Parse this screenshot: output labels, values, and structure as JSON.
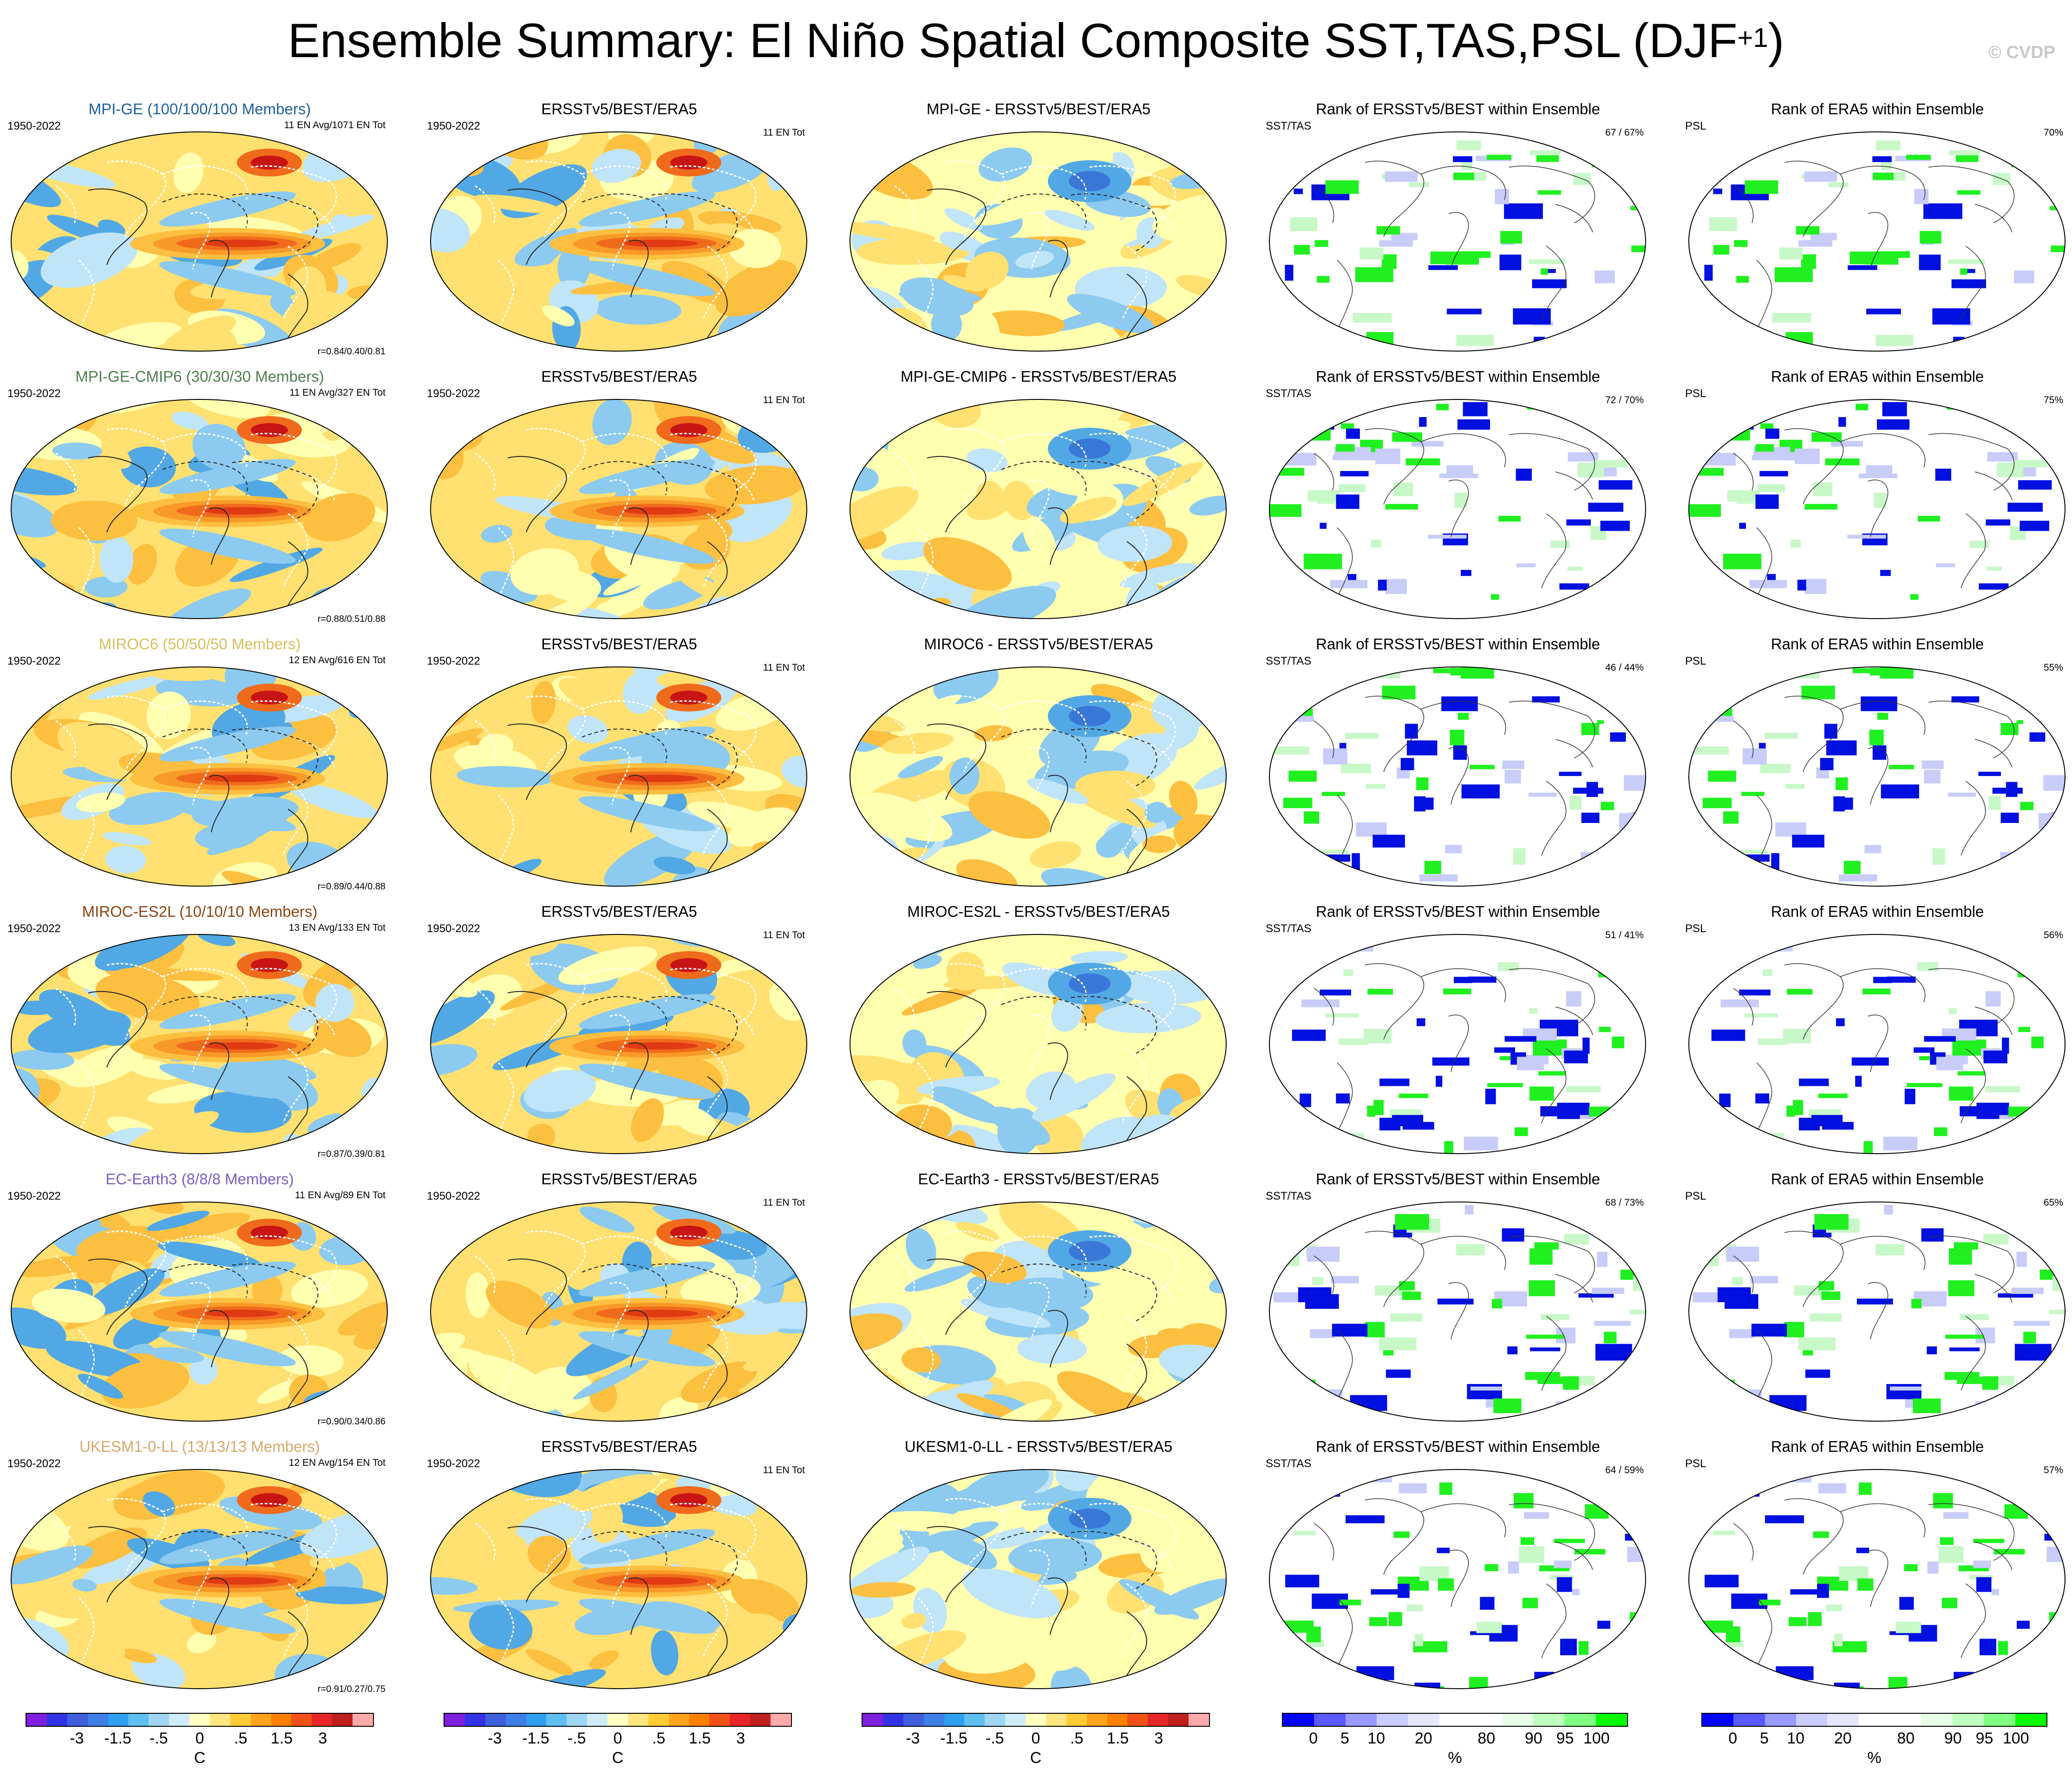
{
  "title": {
    "main": "Ensemble Summary: El Niño Spatial Composite SST,TAS,PSL (DJF",
    "sup": "+1",
    "close": ")"
  },
  "copyright": "© CVDP",
  "colors": {
    "warm": [
      "#ffffb0",
      "#ffe070",
      "#fdbf40",
      "#f89a28",
      "#f06a1c",
      "#e03a14",
      "#c81414"
    ],
    "cool": [
      "#c0e4f8",
      "#8ccaf0",
      "#52a8e4",
      "#3a78d8"
    ],
    "rank_blue": "#0010e0",
    "rank_green": "#20f020",
    "rank_lightblue": "#c8ccf8",
    "rank_lightgreen": "#c8f8c8"
  },
  "rows": [
    {
      "model": {
        "label": "MPI-GE (100/100/100 Members)",
        "color": "#1f5f9f",
        "years": "1950-2022",
        "info": "11 EN Avg/1071 EN Tot",
        "corr": "r=0.84/0.40/0.81"
      },
      "obs": {
        "label": "ERSSTv5/BEST/ERA5",
        "years": "1950-2022",
        "info": "11 EN Tot"
      },
      "diff": {
        "label": "MPI-GE - ERSSTv5/BEST/ERA5"
      },
      "rank_sst": {
        "label": "Rank of ERSSTv5/BEST within Ensemble",
        "var": "SST/TAS",
        "pct": "67 /  67%"
      },
      "rank_psl": {
        "label": "Rank of ERA5 within Ensemble",
        "var": "PSL",
        "pct": "70%"
      }
    },
    {
      "model": {
        "label": "MPI-GE-CMIP6 (30/30/30 Members)",
        "color": "#4f7f4f",
        "years": "1950-2022",
        "info": "11 EN Avg/327 EN Tot",
        "corr": "r=0.88/0.51/0.88"
      },
      "obs": {
        "label": "ERSSTv5/BEST/ERA5",
        "years": "1950-2022",
        "info": "11 EN Tot"
      },
      "diff": {
        "label": "MPI-GE-CMIP6 - ERSSTv5/BEST/ERA5"
      },
      "rank_sst": {
        "label": "Rank of ERSSTv5/BEST within Ensemble",
        "var": "SST/TAS",
        "pct": "72 /  70%"
      },
      "rank_psl": {
        "label": "Rank of ERA5 within Ensemble",
        "var": "PSL",
        "pct": "75%"
      }
    },
    {
      "model": {
        "label": "MIROC6 (50/50/50 Members)",
        "color": "#d8c060",
        "years": "1950-2022",
        "info": "12 EN Avg/616 EN Tot",
        "corr": "r=0.89/0.44/0.88"
      },
      "obs": {
        "label": "ERSSTv5/BEST/ERA5",
        "years": "1950-2022",
        "info": "11 EN Tot"
      },
      "diff": {
        "label": "MIROC6 - ERSSTv5/BEST/ERA5"
      },
      "rank_sst": {
        "label": "Rank of ERSSTv5/BEST within Ensemble",
        "var": "SST/TAS",
        "pct": "46 /  44%"
      },
      "rank_psl": {
        "label": "Rank of ERA5 within Ensemble",
        "var": "PSL",
        "pct": "55%"
      }
    },
    {
      "model": {
        "label": "MIROC-ES2L (10/10/10 Members)",
        "color": "#8b4513",
        "years": "1950-2022",
        "info": "13 EN Avg/133 EN Tot",
        "corr": "r=0.87/0.39/0.81"
      },
      "obs": {
        "label": "ERSSTv5/BEST/ERA5",
        "years": "1950-2022",
        "info": "11 EN Tot"
      },
      "diff": {
        "label": "MIROC-ES2L - ERSSTv5/BEST/ERA5"
      },
      "rank_sst": {
        "label": "Rank of ERSSTv5/BEST within Ensemble",
        "var": "SST/TAS",
        "pct": "51 /  41%"
      },
      "rank_psl": {
        "label": "Rank of ERA5 within Ensemble",
        "var": "PSL",
        "pct": "56%"
      }
    },
    {
      "model": {
        "label": "EC-Earth3 (8/8/8 Members)",
        "color": "#7b5fc7",
        "years": "1950-2022",
        "info": "11 EN Avg/89 EN Tot",
        "corr": "r=0.90/0.34/0.86"
      },
      "obs": {
        "label": "ERSSTv5/BEST/ERA5",
        "years": "1950-2022",
        "info": "11 EN Tot"
      },
      "diff": {
        "label": "EC-Earth3 - ERSSTv5/BEST/ERA5"
      },
      "rank_sst": {
        "label": "Rank of ERSSTv5/BEST within Ensemble",
        "var": "SST/TAS",
        "pct": "68 /  73%"
      },
      "rank_psl": {
        "label": "Rank of ERA5 within Ensemble",
        "var": "PSL",
        "pct": "65%"
      }
    },
    {
      "model": {
        "label": "UKESM1-0-LL (13/13/13 Members)",
        "color": "#d8a868",
        "years": "1950-2022",
        "info": "12 EN Avg/154 EN Tot",
        "corr": "r=0.91/0.27/0.75"
      },
      "obs": {
        "label": "ERSSTv5/BEST/ERA5",
        "years": "1950-2022",
        "info": "11 EN Tot"
      },
      "diff": {
        "label": "UKESM1-0-LL - ERSSTv5/BEST/ERA5"
      },
      "rank_sst": {
        "label": "Rank of ERSSTv5/BEST within Ensemble",
        "var": "SST/TAS",
        "pct": "64 /  59%"
      },
      "rank_psl": {
        "label": "Rank of ERA5 within Ensemble",
        "var": "PSL",
        "pct": "57%"
      }
    }
  ],
  "colorbars": {
    "temp": {
      "colors": [
        "#7f1fdf",
        "#3333e6",
        "#3f5fdf",
        "#3f7fe6",
        "#2f9fef",
        "#5fbfef",
        "#9fd7f3",
        "#cfecf9",
        "#ffffbf",
        "#ffe680",
        "#ffcc33",
        "#ffa319",
        "#ff8000",
        "#f25218",
        "#e62626",
        "#bf1f1f",
        "#ffaaaa"
      ],
      "ticks": [
        "-3",
        "-1.5",
        "-.5",
        "0",
        ".5",
        "1.5",
        "3"
      ],
      "unit": "C"
    },
    "rank": {
      "colors": [
        "#0000ff",
        "#5a5aff",
        "#9999ff",
        "#ccccff",
        "#e6e6ff",
        "#ffffff",
        "#ffffff",
        "#e6ffe6",
        "#bfffbf",
        "#80ff80",
        "#00ff00"
      ],
      "ticks": [
        "0",
        "5",
        "10",
        "20",
        "80",
        "90",
        "95",
        "100"
      ],
      "unit": "%"
    }
  }
}
